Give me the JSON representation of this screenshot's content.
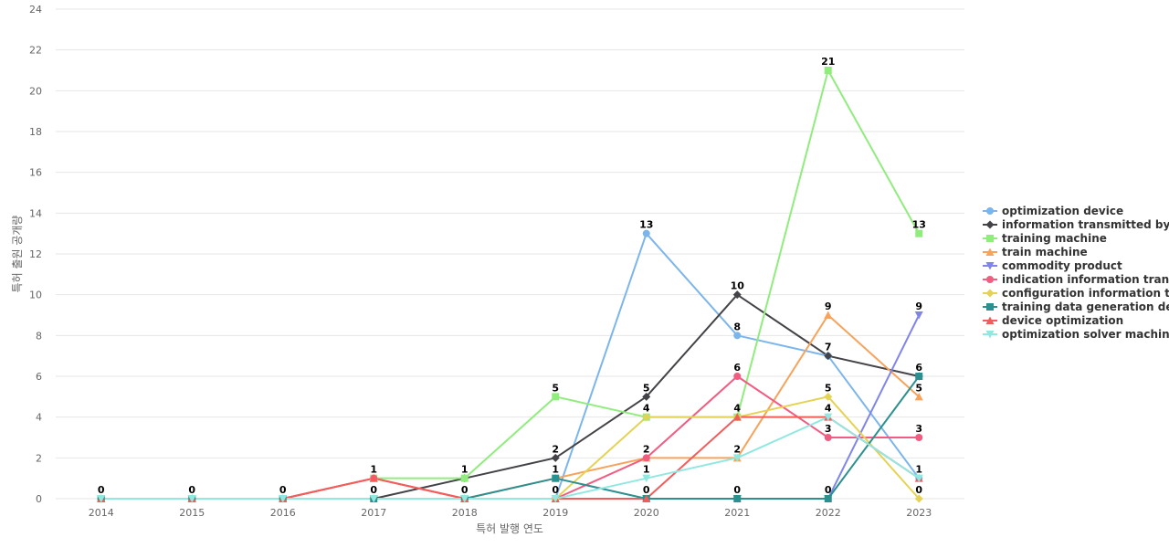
{
  "chart_data": {
    "type": "line",
    "xlabel": "특허 발행 연도",
    "ylabel": "특허 출원 공개량",
    "ylim": [
      0,
      24
    ],
    "yticks": [
      0,
      2,
      4,
      6,
      8,
      10,
      12,
      14,
      16,
      18,
      20,
      22,
      24
    ],
    "grid": true,
    "legend_position": "right",
    "categories": [
      "2014",
      "2015",
      "2016",
      "2017",
      "2018",
      "2019",
      "2020",
      "2021",
      "2022",
      "2023"
    ],
    "series": [
      {
        "name": "optimization device",
        "color": "#7cb5ec",
        "marker": "circle",
        "values": [
          0,
          0,
          0,
          0,
          0,
          0,
          13,
          8,
          7,
          1
        ]
      },
      {
        "name": "information transmitted by ...",
        "color": "#434348",
        "marker": "diamond",
        "values": [
          0,
          0,
          0,
          0,
          1,
          2,
          5,
          10,
          7,
          6
        ]
      },
      {
        "name": "training machine",
        "color": "#90ed7d",
        "marker": "square",
        "values": [
          0,
          0,
          0,
          1,
          1,
          5,
          4,
          4,
          21,
          13
        ]
      },
      {
        "name": "train machine",
        "color": "#f7a35c",
        "marker": "triangle",
        "values": [
          0,
          0,
          0,
          1,
          0,
          1,
          2,
          2,
          9,
          5
        ]
      },
      {
        "name": "commodity product",
        "color": "#8085e9",
        "marker": "triangle-down",
        "values": [
          0,
          0,
          0,
          0,
          0,
          0,
          0,
          0,
          0,
          9
        ]
      },
      {
        "name": "indication information tran...",
        "color": "#f15c80",
        "marker": "circle",
        "values": [
          0,
          0,
          0,
          1,
          0,
          0,
          2,
          6,
          3,
          3
        ]
      },
      {
        "name": "configuration information t...",
        "color": "#e4d354",
        "marker": "diamond",
        "values": [
          0,
          0,
          0,
          0,
          0,
          0,
          4,
          4,
          5,
          0
        ]
      },
      {
        "name": "training data generation de...",
        "color": "#2b908f",
        "marker": "square",
        "values": [
          0,
          0,
          0,
          0,
          0,
          1,
          0,
          0,
          0,
          6
        ]
      },
      {
        "name": "device optimization",
        "color": "#f45b5b",
        "marker": "triangle",
        "values": [
          0,
          0,
          0,
          1,
          0,
          0,
          0,
          4,
          4,
          1
        ]
      },
      {
        "name": "optimization solver machine",
        "color": "#91e8e1",
        "marker": "triangle-down",
        "values": [
          0,
          0,
          0,
          0,
          0,
          0,
          1,
          2,
          4,
          1
        ]
      }
    ],
    "data_labels": [
      {
        "x": "2014",
        "text": "0"
      },
      {
        "x": "2015",
        "text": "0"
      },
      {
        "x": "2016",
        "text": "0"
      },
      {
        "x": "2017",
        "value": 1,
        "text": "1"
      },
      {
        "x": "2017",
        "value": 0,
        "text": "0"
      },
      {
        "x": "2018",
        "value": 1,
        "text": "1"
      },
      {
        "x": "2018",
        "value": 0,
        "text": "0"
      },
      {
        "x": "2019",
        "value": 5,
        "text": "5"
      },
      {
        "x": "2019",
        "value": 2,
        "text": "2"
      },
      {
        "x": "2019",
        "value": 1,
        "text": "1"
      },
      {
        "x": "2019",
        "value": 0,
        "text": "0"
      },
      {
        "x": "2020",
        "value": 13,
        "text": "13"
      },
      {
        "x": "2020",
        "value": 5,
        "text": "5"
      },
      {
        "x": "2020",
        "value": 4,
        "text": "4"
      },
      {
        "x": "2020",
        "value": 2,
        "text": "2"
      },
      {
        "x": "2020",
        "value": 1,
        "text": "1"
      },
      {
        "x": "2020",
        "value": 0,
        "text": "0"
      },
      {
        "x": "2021",
        "value": 10,
        "text": "10"
      },
      {
        "x": "2021",
        "value": 8,
        "text": "8"
      },
      {
        "x": "2021",
        "value": 6,
        "text": "6"
      },
      {
        "x": "2021",
        "value": 4,
        "text": "4"
      },
      {
        "x": "2021",
        "value": 2,
        "text": "2"
      },
      {
        "x": "2021",
        "value": 0,
        "text": "0"
      },
      {
        "x": "2022",
        "value": 21,
        "text": "21"
      },
      {
        "x": "2022",
        "value": 9,
        "text": "9"
      },
      {
        "x": "2022",
        "value": 7,
        "text": "7"
      },
      {
        "x": "2022",
        "value": 5,
        "text": "5"
      },
      {
        "x": "2022",
        "value": 4,
        "text": "4"
      },
      {
        "x": "2022",
        "value": 3,
        "text": "3"
      },
      {
        "x": "2022",
        "value": 0,
        "text": "0"
      },
      {
        "x": "2023",
        "value": 13,
        "text": "13"
      },
      {
        "x": "2023",
        "value": 9,
        "text": "9"
      },
      {
        "x": "2023",
        "value": 6,
        "text": "6"
      },
      {
        "x": "2023",
        "value": 5,
        "text": "5"
      },
      {
        "x": "2023",
        "value": 3,
        "text": "3"
      },
      {
        "x": "2023",
        "value": 1,
        "text": "1"
      },
      {
        "x": "2023",
        "value": 0,
        "text": "0"
      }
    ]
  }
}
